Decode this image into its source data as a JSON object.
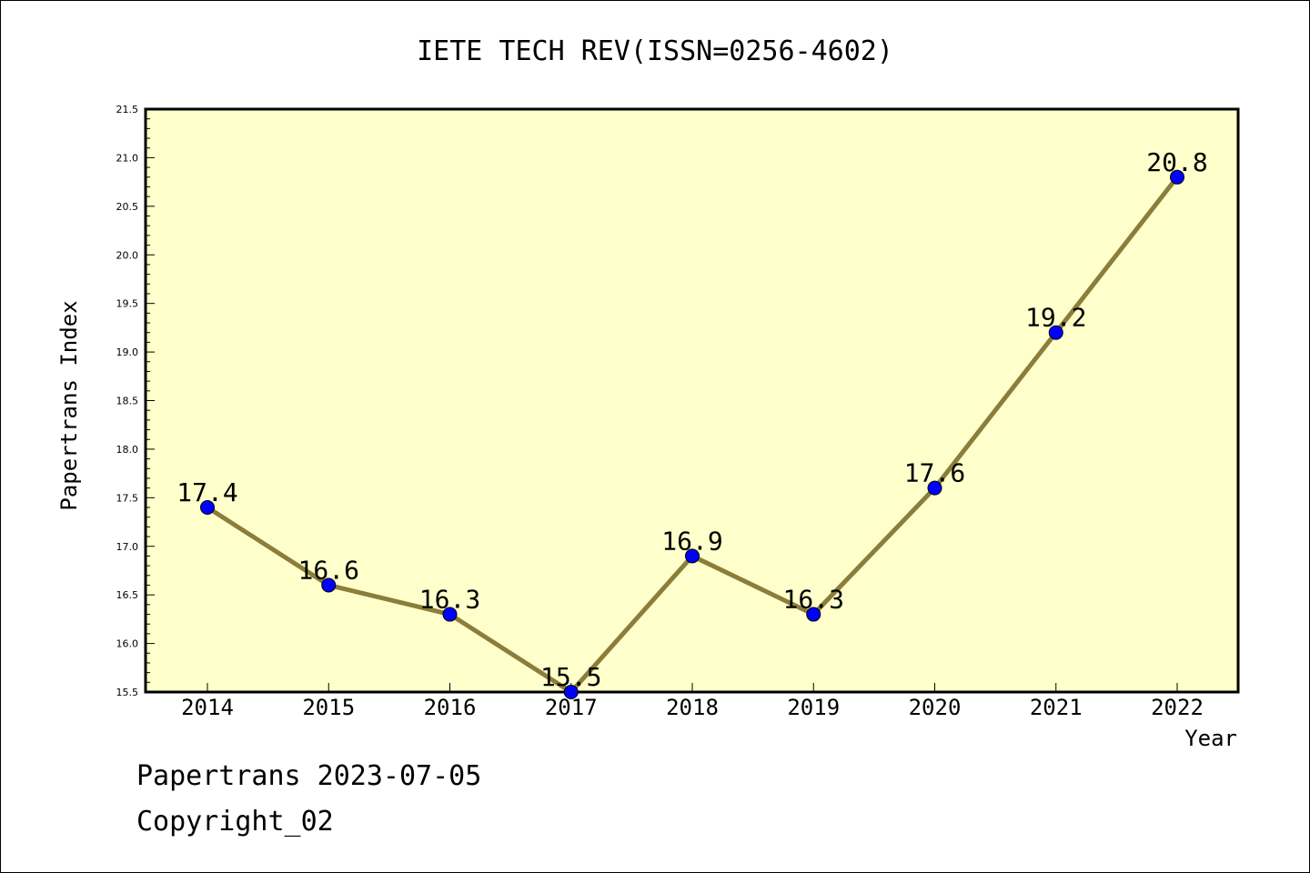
{
  "footer": {
    "line1": "Papertrans 2023-07-05",
    "line2": "Copyright_02"
  },
  "chart_data": {
    "type": "line",
    "title": "IETE TECH REV(ISSN=0256-4602)",
    "xlabel": "Year",
    "ylabel": "Papertrans Index",
    "categories": [
      "2014",
      "2015",
      "2016",
      "2017",
      "2018",
      "2019",
      "2020",
      "2021",
      "2022"
    ],
    "values": [
      17.4,
      16.6,
      16.3,
      15.5,
      16.9,
      16.3,
      17.6,
      19.2,
      20.8
    ],
    "data_labels": [
      "17.4",
      "16.6",
      "16.3",
      "15.5",
      "16.9",
      "16.3",
      "17.6",
      "19.2",
      "20.8"
    ],
    "ylim": [
      15.5,
      21.5
    ],
    "yticks": [
      "15.5",
      "16.0",
      "16.5",
      "17.0",
      "17.5",
      "18.0",
      "18.5",
      "19.0",
      "19.5",
      "20.0",
      "20.5",
      "21.0",
      "21.5"
    ],
    "grid": false,
    "colors": {
      "plot_background": "#ffffcc",
      "line": "#8b7d3a",
      "marker": "#0000ff"
    }
  }
}
